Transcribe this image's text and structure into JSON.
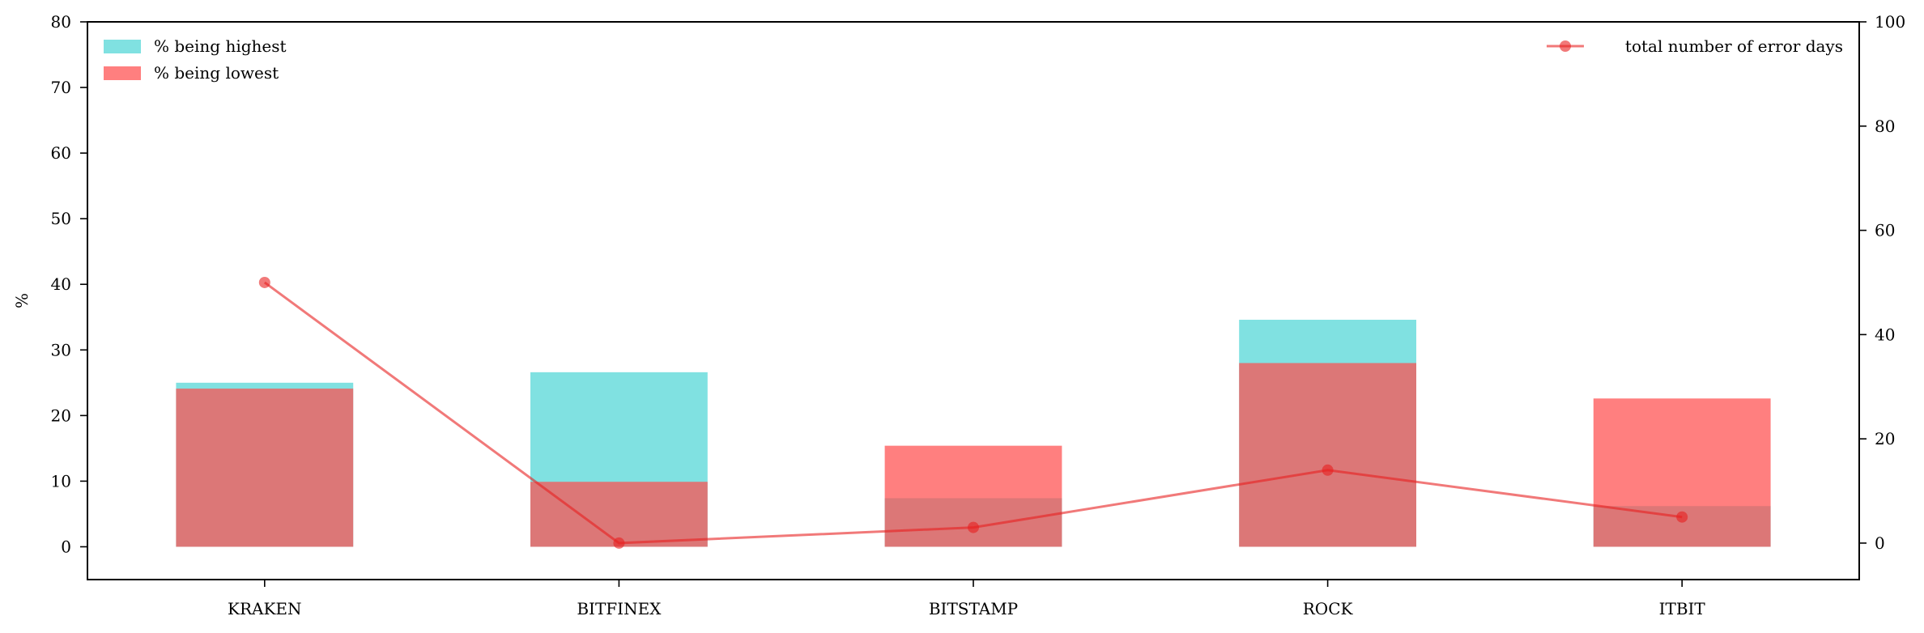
{
  "chart_data": {
    "type": "bar",
    "categories": [
      "KRAKEN",
      "BITFINEX",
      "BITSTAMP",
      "ROCK",
      "ITBIT"
    ],
    "ylabel": "%",
    "ylim": [
      -5,
      80
    ],
    "yticks": [
      0,
      10,
      20,
      30,
      40,
      50,
      60,
      70,
      80
    ],
    "y2lim": [
      -7,
      100
    ],
    "y2ticks": [
      0,
      20,
      40,
      60,
      80,
      100
    ],
    "series": [
      {
        "name": "% being highest",
        "type": "bar",
        "axis": "left",
        "color": "#4fd6d6",
        "opacity": 0.72,
        "values": [
          25.0,
          26.6,
          7.4,
          34.6,
          6.2
        ]
      },
      {
        "name": "% being lowest",
        "type": "bar",
        "axis": "left",
        "color": "#ff4d4d",
        "opacity": 0.72,
        "values": [
          24.1,
          9.9,
          15.4,
          28.0,
          22.6
        ]
      },
      {
        "name": "total number of error days",
        "type": "line",
        "axis": "right",
        "color": "#e82020",
        "opacity": 0.6,
        "values": [
          50,
          0,
          3,
          14,
          5
        ]
      }
    ],
    "legend": {
      "left": "upper-left",
      "right": "upper-right"
    }
  }
}
